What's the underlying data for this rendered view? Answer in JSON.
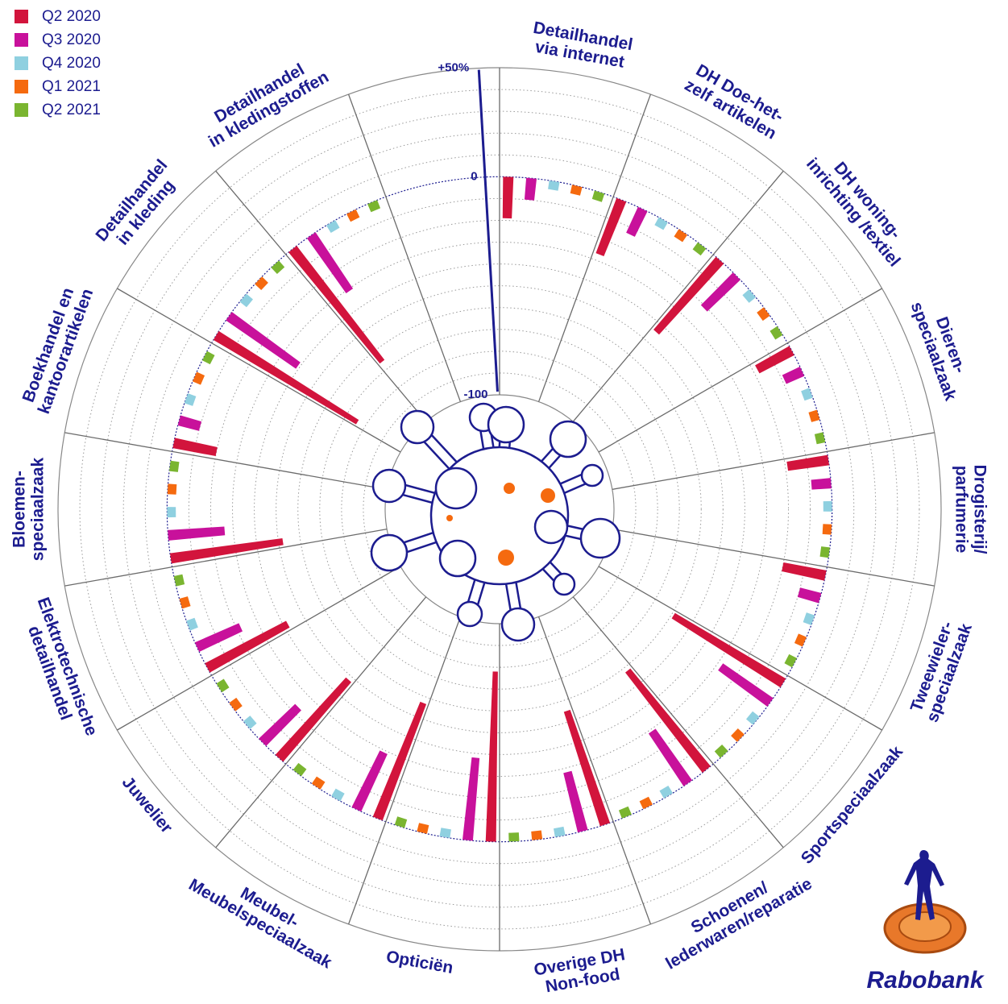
{
  "chart_data": {
    "type": "radial-bar",
    "categories": [
      [
        "Detailhandel",
        "via internet"
      ],
      [
        "DH Doe-het-",
        "zelf artikelen"
      ],
      [
        "DH woning-",
        "inrichting /textiel"
      ],
      [
        "Dieren-",
        "speciaalzaak"
      ],
      [
        "Drogisterij/",
        "parfumerie"
      ],
      [
        "Tweewieler-",
        "speciaalzaak"
      ],
      [
        "Sportspeciaalzaak"
      ],
      [
        "Schoenen/",
        "lederwaren/reparatie"
      ],
      [
        "Overige DH",
        "Non-food"
      ],
      [
        "Opticiën"
      ],
      [
        "Meubel-",
        "Meubelspeciaalzaak"
      ],
      [
        "Juwelier"
      ],
      [
        "Elektrotechnische",
        "detailhandel"
      ],
      [
        "Bloemen-",
        "speciaalzaak"
      ],
      [
        "Boekhandel en",
        "kantoorartikelen"
      ],
      [
        "Detailhandel",
        "in kleding"
      ],
      [
        "Detailhandel",
        "in kledingstoffen"
      ]
    ],
    "series": [
      {
        "name": "Q2 2020",
        "color": "#d2143c",
        "values": [
          -19,
          -27,
          -44,
          -18,
          -19,
          -20,
          -59,
          -58,
          -55,
          -78,
          -57,
          -48,
          -42,
          -52,
          -20,
          -76,
          -66
        ]
      },
      {
        "name": "Q3 2020",
        "color": "#c8119b",
        "values": [
          -10,
          -13,
          -21,
          -9,
          -9,
          -10,
          -28,
          -29,
          -28,
          -38,
          -29,
          -23,
          -22,
          -26,
          -10,
          -39,
          -31
        ]
      },
      {
        "name": "Q4 2020",
        "color": "#8fd0e0",
        "values": [
          -4,
          -4,
          -4,
          -4,
          -4,
          -4,
          -4,
          -4,
          -4,
          -4,
          -4,
          -4,
          -4,
          -4,
          -4,
          -4,
          -4
        ]
      },
      {
        "name": "Q1 2021",
        "color": "#f56a0f",
        "values": [
          -4,
          -4,
          -4,
          -4,
          -4,
          -4,
          -4,
          -4,
          -4,
          -4,
          -4,
          -4,
          -4,
          -4,
          -4,
          -4,
          -4
        ]
      },
      {
        "name": "Q2 2021",
        "color": "#7ab530",
        "values": [
          -4,
          -4,
          -4,
          -4,
          -4,
          -4,
          -4,
          -4,
          -4,
          -4,
          -4,
          -4,
          -4,
          -4,
          -4,
          -4,
          -4
        ]
      }
    ],
    "ylim": [
      -100,
      50
    ],
    "yticks": [
      -100,
      0,
      {
        "value": 50,
        "label": "+50%"
      }
    ],
    "grid_interval": 10,
    "legend": "top-left",
    "brand": "Rabobank"
  }
}
